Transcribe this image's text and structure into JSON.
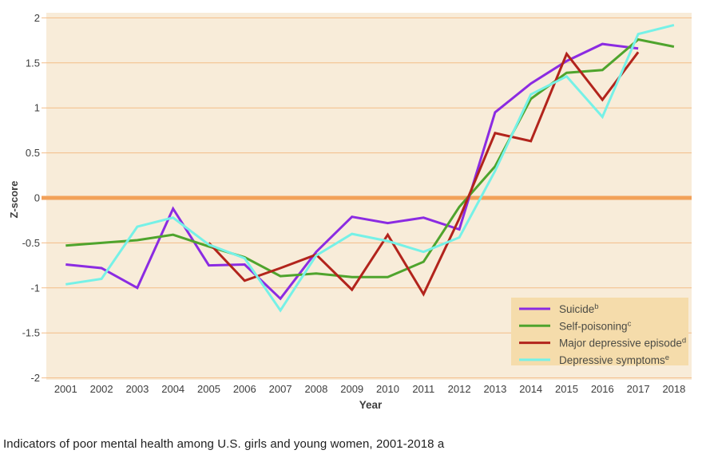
{
  "caption": {
    "text": "Indicators of poor mental health among U.S. girls and young women, 2001-2018 a"
  },
  "chart_data": {
    "type": "line",
    "title": "",
    "xlabel": "Year",
    "ylabel": "Z-score",
    "x": [
      2001,
      2002,
      2003,
      2004,
      2005,
      2006,
      2007,
      2008,
      2009,
      2010,
      2011,
      2012,
      2013,
      2014,
      2015,
      2016,
      2017,
      2018
    ],
    "ylim": [
      -2,
      2
    ],
    "yticks": [
      2,
      1.5,
      1,
      0.5,
      0,
      -0.5,
      -1,
      -1.5,
      -2
    ],
    "grid": "horizontal",
    "zero_line_emphasized": true,
    "legend_position": "bottom-right",
    "series": [
      {
        "name": "Suicide",
        "sup": "b",
        "color": "#8b2be2",
        "values": [
          -0.74,
          -0.78,
          -1.0,
          -0.12,
          -0.75,
          -0.74,
          -1.12,
          -0.6,
          -0.21,
          -0.28,
          -0.22,
          -0.35,
          0.95,
          1.27,
          1.52,
          1.71,
          1.66,
          null
        ]
      },
      {
        "name": "Self-poisoning",
        "sup": "c",
        "color": "#4fa42d",
        "values": [
          -0.53,
          -0.5,
          -0.47,
          -0.41,
          -0.54,
          -0.66,
          -0.87,
          -0.84,
          -0.88,
          -0.88,
          -0.71,
          -0.1,
          0.35,
          1.1,
          1.39,
          1.42,
          1.76,
          1.68
        ]
      },
      {
        "name": "Major depressive episode",
        "sup": "d",
        "color": "#b2241c",
        "values": [
          null,
          null,
          null,
          null,
          -0.5,
          -0.92,
          -0.78,
          -0.63,
          -1.02,
          -0.41,
          -1.07,
          -0.23,
          0.72,
          0.63,
          1.6,
          1.09,
          1.62,
          null
        ]
      },
      {
        "name": "Depressive symptoms",
        "sup": "e",
        "color": "#76f1e7",
        "values": [
          -0.96,
          -0.9,
          -0.32,
          -0.22,
          -0.52,
          -0.67,
          -1.25,
          -0.64,
          -0.4,
          -0.48,
          -0.6,
          -0.44,
          0.3,
          1.15,
          1.35,
          0.9,
          1.82,
          1.92
        ]
      }
    ],
    "colors": {
      "panel_bg": "#f8ecd9",
      "grid_line": "#f3bd88",
      "zero_line": "#f2a159",
      "legend_bg": "#f5dcab",
      "axis_text": "#3d3d3d",
      "legend_text": "#4b4b45"
    }
  }
}
